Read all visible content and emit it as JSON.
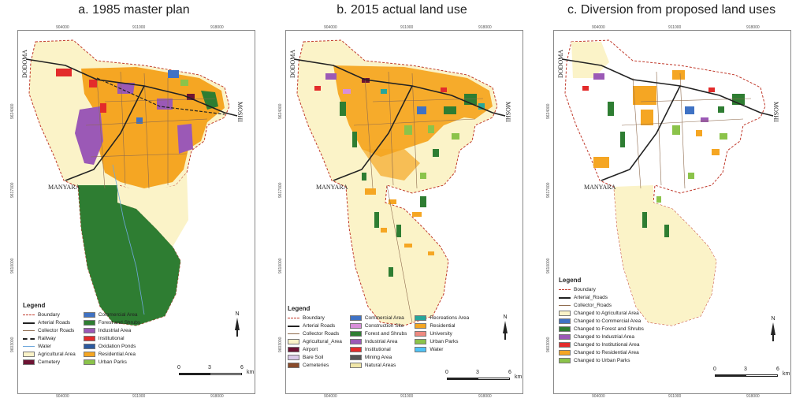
{
  "colors": {
    "agricultural": "#fbf3c8",
    "residential": "#f5a623",
    "forest": "#2e7d32",
    "industrial": "#9b59b6",
    "commercial": "#3f72c4",
    "institutional": "#e32b2b",
    "urban_parks": "#8bc34a",
    "cemetery": "#6d1333",
    "boundary": "#c0392b",
    "road": "#222222"
  },
  "panels": [
    {
      "title": "a. 1985 master plan",
      "ticks_top": [
        "904000",
        "911000",
        "918000"
      ],
      "ticks_bottom": [
        "904000",
        "911000",
        "918000"
      ],
      "ticks_side": [
        "9624000",
        "9617000",
        "9610000",
        "9603000"
      ],
      "places": {
        "west": "DODOMA",
        "east": "MOSHI",
        "south": "MANYARA"
      },
      "legend_title": "Legend",
      "legend_col1": [
        {
          "label": "Boundary",
          "kind": "dash",
          "color": "#c0392b"
        },
        {
          "label": "Arterial Roads",
          "kind": "line",
          "color": "#222222"
        },
        {
          "label": "Collector Roads",
          "kind": "thin",
          "color": "#8e6b4e"
        },
        {
          "label": "Railway",
          "kind": "rail",
          "color": "#222222"
        },
        {
          "label": "Water",
          "kind": "thin",
          "color": "#6fa8dc"
        },
        {
          "label": "Agricultural Area",
          "kind": "fill",
          "color": "#fbf3c8"
        },
        {
          "label": "Cemetery",
          "kind": "fill",
          "color": "#6d1333"
        }
      ],
      "legend_col2": [
        {
          "label": "Commercial Area",
          "kind": "fill",
          "color": "#3f72c4"
        },
        {
          "label": "Forest and Shrubs",
          "kind": "fill",
          "color": "#2e7d32"
        },
        {
          "label": "Industrial Area",
          "kind": "fill",
          "color": "#9b59b6"
        },
        {
          "label": "Institutional",
          "kind": "fill",
          "color": "#e32b2b"
        },
        {
          "label": "Oxidation Ponds",
          "kind": "fill",
          "color": "#2c5aa0"
        },
        {
          "label": "Residential Area",
          "kind": "fill",
          "color": "#f5a623"
        },
        {
          "label": "Urban Parks",
          "kind": "fill",
          "color": "#8bc34a"
        }
      ],
      "scale": {
        "labels": [
          "0",
          "3",
          "6"
        ],
        "unit": "km"
      },
      "north": "N"
    },
    {
      "title": "b. 2015 actual land use",
      "ticks_top": [
        "904000",
        "911000",
        "918000"
      ],
      "ticks_bottom": [
        "904000",
        "911000",
        "918000"
      ],
      "ticks_side": [
        "9624000",
        "9617000",
        "9610000",
        "9603000"
      ],
      "places": {
        "west": "DODOMA",
        "east": "MOSHI",
        "south": "MANYARA"
      },
      "legend_title": "Legend",
      "legend_col1": [
        {
          "label": "Boundary",
          "kind": "dash",
          "color": "#c0392b"
        },
        {
          "label": "Arterial Roads",
          "kind": "line",
          "color": "#222222"
        },
        {
          "label": "Collector Roads",
          "kind": "thin",
          "color": "#8e6b4e"
        },
        {
          "label": "Agricultural_Area",
          "kind": "fill",
          "color": "#fbf3c8"
        },
        {
          "label": "Airport",
          "kind": "fill",
          "color": "#6d1333"
        },
        {
          "label": "Bare Soil",
          "kind": "fill",
          "color": "#d9c8e8"
        },
        {
          "label": "Cemeteries",
          "kind": "fill",
          "color": "#8a4b2a"
        }
      ],
      "legend_col2": [
        {
          "label": "Commercial Area",
          "kind": "fill",
          "color": "#3f72c4"
        },
        {
          "label": "Construction Site",
          "kind": "fill",
          "color": "#d88fd8"
        },
        {
          "label": "Forest and Shrubs",
          "kind": "fill",
          "color": "#2e7d32"
        },
        {
          "label": "Industrial Area",
          "kind": "fill",
          "color": "#9b59b6"
        },
        {
          "label": "Institutional",
          "kind": "fill",
          "color": "#e32b2b"
        },
        {
          "label": "Mining Area",
          "kind": "fill",
          "color": "#555555"
        },
        {
          "label": "Natural Areas",
          "kind": "fill",
          "color": "#f0e6a8"
        }
      ],
      "legend_col3": [
        {
          "label": "Recreations Area",
          "kind": "fill",
          "color": "#26a69a"
        },
        {
          "label": "Residential",
          "kind": "fill",
          "color": "#f5a623"
        },
        {
          "label": "University",
          "kind": "fill",
          "color": "#ef8a80"
        },
        {
          "label": "Urban Parks",
          "kind": "fill",
          "color": "#8bc34a"
        },
        {
          "label": "Water",
          "kind": "fill",
          "color": "#4fc3f7"
        }
      ],
      "scale": {
        "labels": [
          "0",
          "3",
          "6"
        ],
        "unit": "km"
      },
      "north": "N"
    },
    {
      "title": "c. Diversion from proposed land uses",
      "ticks_top": [
        "904000",
        "911000",
        "918000"
      ],
      "ticks_bottom": [
        "904000",
        "911000",
        "918000"
      ],
      "ticks_side": [
        "9624000",
        "9617000",
        "9610000",
        "9603000"
      ],
      "places": {
        "west": "DODOMA",
        "east": "MOSHI",
        "south": "MANYARA"
      },
      "legend_title": "Legend",
      "legend_col1": [
        {
          "label": "Boundary",
          "kind": "dash",
          "color": "#c0392b"
        },
        {
          "label": "Arterial_Roads",
          "kind": "line",
          "color": "#222222"
        },
        {
          "label": "Collector_Roads",
          "kind": "thin",
          "color": "#8e6b4e"
        },
        {
          "label": "Changed to Agricultural Area",
          "kind": "fill",
          "color": "#fbf3c8"
        },
        {
          "label": "Changed to Commercial Area",
          "kind": "fill",
          "color": "#3f72c4"
        },
        {
          "label": "Changed to Forest and Shrubs",
          "kind": "fill",
          "color": "#2e7d32"
        },
        {
          "label": "Changed to Industrial Area",
          "kind": "fill",
          "color": "#9b59b6"
        },
        {
          "label": "Changed to Institutional Area",
          "kind": "fill",
          "color": "#e32b2b"
        },
        {
          "label": "Changed to Residential Area",
          "kind": "fill",
          "color": "#f5a623"
        },
        {
          "label": "Changed to Urban Parks",
          "kind": "fill",
          "color": "#8bc34a"
        }
      ],
      "scale": {
        "labels": [
          "0",
          "3",
          "6"
        ],
        "unit": "km"
      },
      "north": "N"
    }
  ]
}
